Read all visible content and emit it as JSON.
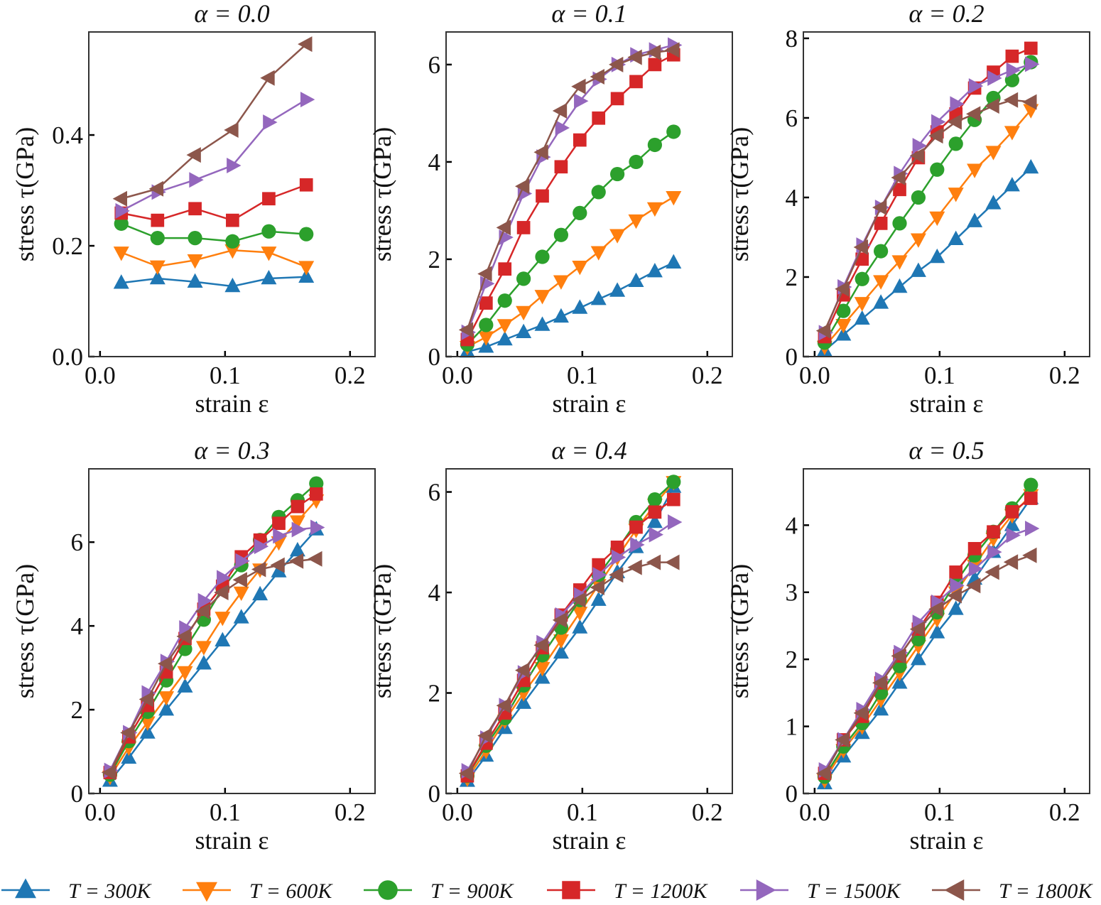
{
  "colors": {
    "300K": "#1f77b4",
    "600K": "#ff7f0e",
    "900K": "#2ca02c",
    "1200K": "#d62728",
    "1500K": "#9467bd",
    "1800K": "#8c564b"
  },
  "legend": [
    {
      "label": "T = 300K",
      "key": "300K",
      "marker": "triangle-up"
    },
    {
      "label": "T = 600K",
      "key": "600K",
      "marker": "triangle-down"
    },
    {
      "label": "T = 900K",
      "key": "900K",
      "marker": "circle"
    },
    {
      "label": "T = 1200K",
      "key": "1200K",
      "marker": "square"
    },
    {
      "label": "T = 1500K",
      "key": "1500K",
      "marker": "triangle-right"
    },
    {
      "label": "T = 1800K",
      "key": "1800K",
      "marker": "triangle-left"
    }
  ],
  "chart_data": [
    {
      "type": "line",
      "title": "α = 0.0",
      "xlabel": "strain ε",
      "ylabel": "stress τ(GPa)",
      "xlim": [
        -0.009,
        0.22
      ],
      "ylim": [
        0,
        0.586
      ],
      "xticks": [
        0.0,
        0.1,
        0.2
      ],
      "xtick_labels": [
        "0.0",
        "0.1",
        "0.2"
      ],
      "yticks": [
        0,
        0.2,
        0.4
      ],
      "ytick_labels": [
        "0.0",
        "0.2",
        "0.4"
      ],
      "x": [
        0.017,
        0.046,
        0.076,
        0.106,
        0.135,
        0.165
      ],
      "series": [
        {
          "key": "300K",
          "values": [
            0.133,
            0.141,
            0.135,
            0.127,
            0.141,
            0.144
          ]
        },
        {
          "key": "600K",
          "values": [
            0.188,
            0.163,
            0.174,
            0.192,
            0.188,
            0.162
          ]
        },
        {
          "key": "900K",
          "values": [
            0.24,
            0.214,
            0.214,
            0.208,
            0.226,
            0.221
          ]
        },
        {
          "key": "1200K",
          "values": [
            0.259,
            0.246,
            0.267,
            0.246,
            0.285,
            0.31
          ]
        },
        {
          "key": "1500K",
          "values": [
            0.263,
            0.297,
            0.319,
            0.345,
            0.423,
            0.464
          ]
        },
        {
          "key": "1800K",
          "values": [
            0.285,
            0.303,
            0.364,
            0.409,
            0.503,
            0.564
          ]
        }
      ]
    },
    {
      "type": "line",
      "title": "α = 0.1",
      "xlabel": "strain ε",
      "ylabel": "stress τ(GPa)",
      "xlim": [
        -0.009,
        0.22
      ],
      "ylim": [
        0,
        6.67
      ],
      "xticks": [
        0.0,
        0.1,
        0.2
      ],
      "xtick_labels": [
        "0.0",
        "0.1",
        "0.2"
      ],
      "yticks": [
        0,
        2,
        4,
        6
      ],
      "ytick_labels": [
        "0",
        "2",
        "4",
        "6"
      ],
      "x": [
        0.008,
        0.023,
        0.038,
        0.053,
        0.068,
        0.083,
        0.098,
        0.113,
        0.128,
        0.143,
        0.158,
        0.173
      ],
      "series": [
        {
          "key": "300K",
          "values": [
            0.1,
            0.2,
            0.35,
            0.5,
            0.65,
            0.82,
            1.0,
            1.18,
            1.35,
            1.55,
            1.75,
            1.93
          ]
        },
        {
          "key": "600K",
          "values": [
            0.2,
            0.4,
            0.65,
            0.92,
            1.25,
            1.55,
            1.85,
            2.15,
            2.5,
            2.8,
            3.05,
            3.28
          ]
        },
        {
          "key": "900K",
          "values": [
            0.25,
            0.65,
            1.15,
            1.6,
            2.05,
            2.5,
            2.95,
            3.38,
            3.75,
            4.0,
            4.35,
            4.62
          ]
        },
        {
          "key": "1200K",
          "values": [
            0.35,
            1.1,
            1.8,
            2.65,
            3.3,
            3.9,
            4.45,
            4.9,
            5.3,
            5.65,
            6.0,
            6.2
          ]
        },
        {
          "key": "1500K",
          "values": [
            0.5,
            1.5,
            2.45,
            3.35,
            4.1,
            4.7,
            5.25,
            5.7,
            6.0,
            6.2,
            6.3,
            6.4
          ]
        },
        {
          "key": "1800K",
          "values": [
            0.55,
            1.7,
            2.65,
            3.5,
            4.2,
            5.05,
            5.55,
            5.75,
            6.0,
            6.15,
            6.25,
            6.3
          ]
        }
      ]
    },
    {
      "type": "line",
      "title": "α = 0.2",
      "xlabel": "strain ε",
      "ylabel": "stress τ(GPa)",
      "xlim": [
        -0.009,
        0.22
      ],
      "ylim": [
        0,
        8.16
      ],
      "xticks": [
        0.0,
        0.1,
        0.2
      ],
      "xtick_labels": [
        "0.0",
        "0.1",
        "0.2"
      ],
      "yticks": [
        0,
        2,
        4,
        6,
        8
      ],
      "ytick_labels": [
        "0",
        "2",
        "4",
        "6",
        "8"
      ],
      "x": [
        0.008,
        0.023,
        0.038,
        0.053,
        0.068,
        0.083,
        0.098,
        0.113,
        0.128,
        0.143,
        0.158,
        0.173
      ],
      "series": [
        {
          "key": "300K",
          "values": [
            0.15,
            0.55,
            0.95,
            1.35,
            1.75,
            2.15,
            2.5,
            2.95,
            3.4,
            3.85,
            4.3,
            4.75
          ]
        },
        {
          "key": "600K",
          "values": [
            0.25,
            0.8,
            1.35,
            1.9,
            2.4,
            2.95,
            3.5,
            4.1,
            4.7,
            5.15,
            5.65,
            6.2
          ]
        },
        {
          "key": "900K",
          "values": [
            0.35,
            1.15,
            1.95,
            2.65,
            3.35,
            4.0,
            4.7,
            5.35,
            5.95,
            6.5,
            6.95,
            7.4
          ]
        },
        {
          "key": "1200K",
          "values": [
            0.5,
            1.55,
            2.45,
            3.35,
            4.2,
            5.0,
            5.65,
            6.1,
            6.75,
            7.15,
            7.55,
            7.75
          ]
        },
        {
          "key": "1500K",
          "values": [
            0.6,
            1.75,
            2.8,
            3.75,
            4.6,
            5.3,
            5.9,
            6.35,
            6.8,
            7.0,
            7.2,
            7.35
          ]
        },
        {
          "key": "1800K",
          "values": [
            0.65,
            1.7,
            2.75,
            3.75,
            4.5,
            5.05,
            5.55,
            5.9,
            6.1,
            6.3,
            6.45,
            6.4
          ]
        }
      ]
    },
    {
      "type": "line",
      "title": "α = 0.3",
      "xlabel": "strain ε",
      "ylabel": "stress τ(GPa)",
      "xlim": [
        -0.009,
        0.22
      ],
      "ylim": [
        0,
        7.75
      ],
      "xticks": [
        0.0,
        0.1,
        0.2
      ],
      "xtick_labels": [
        "0.0",
        "0.1",
        "0.2"
      ],
      "yticks": [
        0,
        2,
        4,
        6
      ],
      "ytick_labels": [
        "0",
        "2",
        "4",
        "6"
      ],
      "x": [
        0.008,
        0.023,
        0.038,
        0.053,
        0.068,
        0.083,
        0.098,
        0.113,
        0.128,
        0.143,
        0.158,
        0.173
      ],
      "series": [
        {
          "key": "300K",
          "values": [
            0.3,
            0.85,
            1.45,
            2.0,
            2.55,
            3.1,
            3.65,
            4.2,
            4.75,
            5.3,
            5.8,
            6.3
          ]
        },
        {
          "key": "600K",
          "values": [
            0.4,
            1.1,
            1.7,
            2.3,
            2.9,
            3.5,
            4.2,
            4.8,
            5.35,
            6.0,
            6.5,
            7.0
          ]
        },
        {
          "key": "900K",
          "values": [
            0.45,
            1.25,
            1.95,
            2.7,
            3.45,
            4.15,
            4.9,
            5.45,
            6.05,
            6.6,
            7.0,
            7.4
          ]
        },
        {
          "key": "1200K",
          "values": [
            0.5,
            1.35,
            2.1,
            2.9,
            3.7,
            4.4,
            4.95,
            5.65,
            6.05,
            6.45,
            6.85,
            7.15
          ]
        },
        {
          "key": "1500K",
          "values": [
            0.55,
            1.45,
            2.4,
            3.15,
            3.95,
            4.6,
            5.15,
            5.55,
            5.9,
            6.15,
            6.3,
            6.35
          ]
        },
        {
          "key": "1800K",
          "values": [
            0.5,
            1.45,
            2.25,
            3.1,
            3.75,
            4.35,
            4.8,
            5.1,
            5.35,
            5.45,
            5.55,
            5.6
          ]
        }
      ]
    },
    {
      "type": "line",
      "title": "α = 0.4",
      "xlabel": "strain ε",
      "ylabel": "stress τ(GPa)",
      "xlim": [
        -0.009,
        0.22
      ],
      "ylim": [
        0,
        6.46
      ],
      "xticks": [
        0.0,
        0.1,
        0.2
      ],
      "xtick_labels": [
        "0.0",
        "0.1",
        "0.2"
      ],
      "yticks": [
        0,
        2,
        4,
        6
      ],
      "ytick_labels": [
        "0",
        "2",
        "4",
        "6"
      ],
      "x": [
        0.008,
        0.023,
        0.038,
        0.053,
        0.068,
        0.083,
        0.098,
        0.113,
        0.128,
        0.143,
        0.158,
        0.173
      ],
      "series": [
        {
          "key": "300K",
          "values": [
            0.25,
            0.75,
            1.3,
            1.8,
            2.3,
            2.8,
            3.3,
            3.85,
            4.4,
            4.9,
            5.4,
            6.1
          ]
        },
        {
          "key": "600K",
          "values": [
            0.3,
            0.85,
            1.45,
            2.0,
            2.5,
            3.05,
            3.6,
            4.15,
            4.7,
            5.25,
            5.75,
            6.2
          ]
        },
        {
          "key": "900K",
          "values": [
            0.35,
            0.95,
            1.5,
            2.15,
            2.75,
            3.3,
            3.85,
            4.35,
            4.85,
            5.4,
            5.85,
            6.2
          ]
        },
        {
          "key": "1200K",
          "values": [
            0.35,
            1.0,
            1.6,
            2.25,
            2.9,
            3.55,
            4.05,
            4.55,
            4.9,
            5.3,
            5.6,
            5.85
          ]
        },
        {
          "key": "1500K",
          "values": [
            0.45,
            1.1,
            1.75,
            2.4,
            3.0,
            3.55,
            3.95,
            4.35,
            4.7,
            4.95,
            5.15,
            5.4
          ]
        },
        {
          "key": "1800K",
          "values": [
            0.4,
            1.15,
            1.75,
            2.45,
            2.95,
            3.45,
            3.85,
            4.1,
            4.35,
            4.5,
            4.6,
            4.6
          ]
        }
      ]
    },
    {
      "type": "line",
      "title": "α = 0.5",
      "xlabel": "strain ε",
      "ylabel": "stress τ(GPa)",
      "xlim": [
        -0.009,
        0.22
      ],
      "ylim": [
        0,
        4.84
      ],
      "xticks": [
        0.0,
        0.1,
        0.2
      ],
      "xtick_labels": [
        "0.0",
        "0.1",
        "0.2"
      ],
      "yticks": [
        0,
        1,
        2,
        3,
        4
      ],
      "ytick_labels": [
        "0",
        "1",
        "2",
        "3",
        "4"
      ],
      "x": [
        0.008,
        0.023,
        0.038,
        0.053,
        0.068,
        0.083,
        0.098,
        0.113,
        0.128,
        0.143,
        0.158,
        0.173
      ],
      "series": [
        {
          "key": "300K",
          "values": [
            0.15,
            0.55,
            0.9,
            1.25,
            1.65,
            2.0,
            2.4,
            2.75,
            3.2,
            3.6,
            4.0,
            4.4
          ]
        },
        {
          "key": "600K",
          "values": [
            0.2,
            0.65,
            1.0,
            1.4,
            1.8,
            2.2,
            2.6,
            3.0,
            3.4,
            3.8,
            4.15,
            4.45
          ]
        },
        {
          "key": "900K",
          "values": [
            0.25,
            0.7,
            1.05,
            1.5,
            1.9,
            2.3,
            2.7,
            3.15,
            3.55,
            3.9,
            4.25,
            4.6
          ]
        },
        {
          "key": "1200K",
          "values": [
            0.3,
            0.8,
            1.15,
            1.65,
            2.05,
            2.45,
            2.85,
            3.3,
            3.65,
            3.9,
            4.2,
            4.4
          ]
        },
        {
          "key": "1500K",
          "values": [
            0.35,
            0.8,
            1.25,
            1.7,
            2.1,
            2.55,
            2.85,
            3.1,
            3.35,
            3.6,
            3.85,
            3.95
          ]
        },
        {
          "key": "1800K",
          "values": [
            0.3,
            0.8,
            1.2,
            1.65,
            2.05,
            2.45,
            2.75,
            2.95,
            3.1,
            3.3,
            3.45,
            3.55
          ]
        }
      ]
    }
  ]
}
